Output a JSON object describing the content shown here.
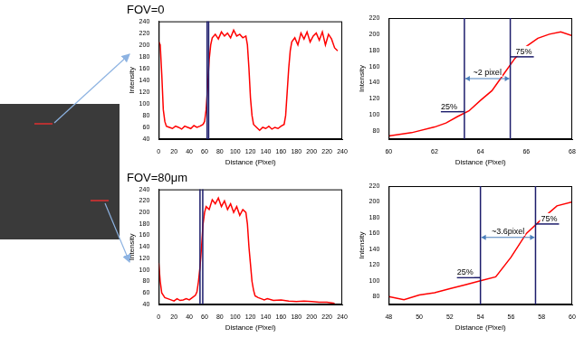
{
  "chart_data": [
    {
      "type": "line",
      "title": "FOV=0",
      "x_label": "Distance (Pixel)",
      "y_label": "Intensity",
      "color": "#ff0000",
      "grid": false,
      "x": [
        0,
        2,
        4,
        6,
        8,
        10,
        14,
        18,
        22,
        26,
        30,
        34,
        38,
        42,
        46,
        50,
        54,
        58,
        60,
        62,
        64,
        66,
        68,
        70,
        74,
        78,
        82,
        86,
        90,
        94,
        98,
        102,
        106,
        110,
        114,
        116,
        118,
        120,
        122,
        124,
        128,
        132,
        136,
        140,
        144,
        148,
        152,
        156,
        160,
        164,
        166,
        168,
        170,
        172,
        174,
        178,
        182,
        186,
        190,
        194,
        198,
        202,
        206,
        210,
        214,
        218,
        222,
        226,
        230,
        234
      ],
      "values": [
        205,
        200,
        150,
        90,
        70,
        62,
        60,
        58,
        62,
        60,
        57,
        62,
        60,
        58,
        63,
        60,
        62,
        65,
        70,
        90,
        130,
        175,
        200,
        212,
        218,
        210,
        222,
        215,
        220,
        212,
        225,
        215,
        218,
        212,
        215,
        200,
        160,
        110,
        80,
        65,
        60,
        55,
        60,
        58,
        62,
        57,
        60,
        58,
        62,
        65,
        80,
        120,
        160,
        190,
        205,
        212,
        200,
        220,
        210,
        222,
        205,
        215,
        220,
        208,
        222,
        200,
        218,
        210,
        195,
        190
      ],
      "xlim": [
        0,
        240
      ],
      "xticks": [
        0,
        20,
        40,
        60,
        80,
        100,
        120,
        140,
        160,
        180,
        200,
        220,
        240
      ],
      "ylim": [
        40,
        240
      ],
      "yticks": [
        40,
        60,
        80,
        100,
        120,
        140,
        160,
        180,
        200,
        220,
        240
      ],
      "vlines": [
        63.3,
        65.3
      ]
    },
    {
      "type": "line",
      "x_label": "Distance (Pixel)",
      "y_label": "Intensity",
      "color": "#ff0000",
      "grid": false,
      "x": [
        60,
        61,
        62,
        62.5,
        63,
        63.5,
        64,
        64.5,
        65,
        65.5,
        66,
        66.5,
        67,
        67.5,
        68
      ],
      "values": [
        74,
        78,
        85,
        90,
        98,
        105,
        118,
        130,
        150,
        170,
        185,
        195,
        200,
        203,
        198
      ],
      "xlim": [
        60,
        68
      ],
      "xticks": [
        60,
        62,
        64,
        66,
        68
      ],
      "ylim": [
        70,
        220
      ],
      "yticks": [
        80,
        100,
        120,
        140,
        160,
        180,
        200,
        220
      ],
      "vlines": [
        63.3,
        65.3
      ],
      "levels": [
        {
          "label": "25%",
          "value": 104
        },
        {
          "label": "75%",
          "value": 172
        }
      ],
      "span": {
        "label": "~2 pixel",
        "value": 145
      }
    },
    {
      "type": "line",
      "title": "FOV=80μm",
      "x_label": "Distance (Pixel)",
      "y_label": "Intensity",
      "color": "#ff0000",
      "grid": false,
      "x": [
        0,
        2,
        4,
        8,
        12,
        16,
        20,
        24,
        28,
        32,
        36,
        40,
        44,
        48,
        50,
        52,
        54,
        56,
        58,
        60,
        62,
        66,
        70,
        74,
        78,
        82,
        86,
        90,
        94,
        98,
        102,
        106,
        110,
        114,
        116,
        118,
        120,
        122,
        124,
        126,
        130,
        134,
        138,
        142,
        150,
        160,
        170,
        180,
        190,
        200,
        210,
        220,
        230
      ],
      "values": [
        112,
        80,
        60,
        52,
        50,
        48,
        46,
        50,
        47,
        48,
        50,
        48,
        52,
        56,
        62,
        80,
        105,
        140,
        180,
        200,
        210,
        205,
        222,
        215,
        225,
        210,
        220,
        205,
        215,
        200,
        210,
        195,
        205,
        200,
        180,
        140,
        110,
        80,
        65,
        55,
        52,
        50,
        48,
        50,
        47,
        48,
        46,
        45,
        46,
        45,
        44,
        44,
        42
      ],
      "xlim": [
        0,
        240
      ],
      "xticks": [
        0,
        20,
        40,
        60,
        80,
        100,
        120,
        140,
        160,
        180,
        200,
        220,
        240
      ],
      "ylim": [
        40,
        240
      ],
      "yticks": [
        40,
        60,
        80,
        100,
        120,
        140,
        160,
        180,
        200,
        220,
        240
      ],
      "vlines": [
        54,
        57.6
      ]
    },
    {
      "type": "line",
      "x_label": "Distance (Pixel)",
      "y_label": "Intensity",
      "color": "#ff0000",
      "grid": false,
      "x": [
        48,
        49,
        50,
        51,
        52,
        53,
        54,
        55,
        56,
        57,
        58,
        59,
        60
      ],
      "values": [
        80,
        76,
        82,
        85,
        90,
        95,
        100,
        105,
        130,
        160,
        178,
        195,
        200
      ],
      "xlim": [
        48,
        60
      ],
      "xticks": [
        48,
        50,
        52,
        54,
        56,
        58,
        60
      ],
      "ylim": [
        70,
        220
      ],
      "yticks": [
        80,
        100,
        120,
        140,
        160,
        180,
        200,
        220
      ],
      "vlines": [
        54,
        57.6
      ],
      "levels": [
        {
          "label": "25%",
          "value": 104
        },
        {
          "label": "75%",
          "value": 172
        }
      ],
      "span": {
        "label": "~3.6pixel",
        "value": 155
      }
    }
  ]
}
